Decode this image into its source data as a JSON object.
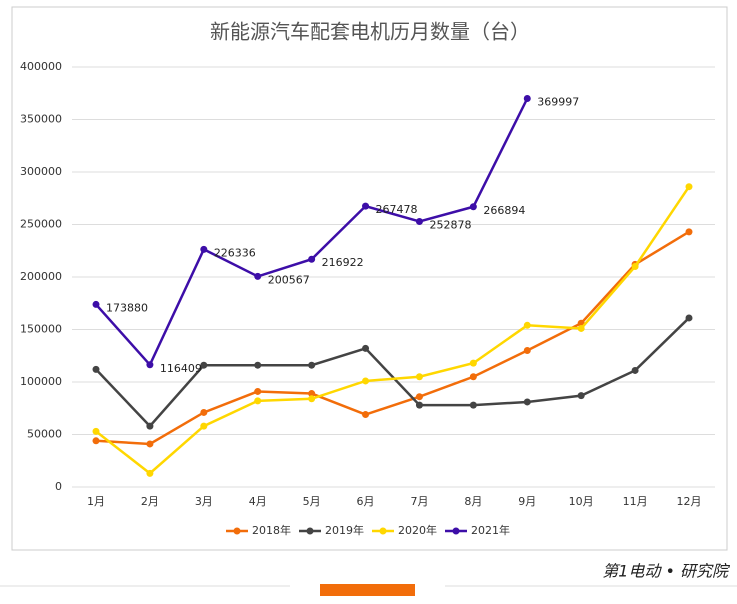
{
  "chart_data": {
    "type": "line",
    "title": "新能源汽车配套电机历月数量（台）",
    "categories": [
      "1月",
      "2月",
      "3月",
      "4月",
      "5月",
      "6月",
      "7月",
      "8月",
      "9月",
      "10月",
      "11月",
      "12月"
    ],
    "series": [
      {
        "name": "2018年",
        "color": "#f26d0a",
        "values": [
          44000,
          41000,
          71000,
          91000,
          89000,
          69000,
          86000,
          105000,
          130000,
          156000,
          212000,
          243000
        ]
      },
      {
        "name": "2019年",
        "color": "#444444",
        "values": [
          112000,
          58000,
          116000,
          116000,
          116000,
          132000,
          78000,
          78000,
          81000,
          87000,
          111000,
          161000
        ]
      },
      {
        "name": "2020年",
        "color": "#ffd700",
        "values": [
          53000,
          13000,
          58000,
          82000,
          84000,
          101000,
          105000,
          118000,
          154000,
          151000,
          210000,
          286000
        ]
      },
      {
        "name": "2021年",
        "color": "#3d0ea8",
        "values": [
          173880,
          116409,
          226336,
          200567,
          216922,
          267478,
          252878,
          266894,
          369997,
          null,
          null,
          null
        ],
        "data_labels": true
      }
    ],
    "ylim": [
      0,
      400000
    ],
    "yticks": [
      0,
      50000,
      100000,
      150000,
      200000,
      250000,
      300000,
      350000,
      400000
    ],
    "grid": true,
    "legend": "bottom",
    "brand": "第1电动 • 研究院"
  }
}
